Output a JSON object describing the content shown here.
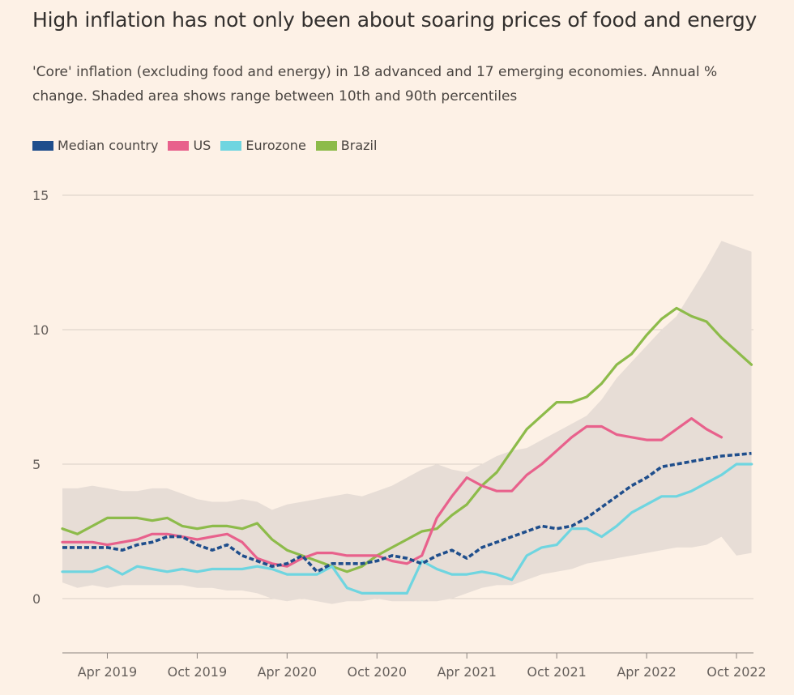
{
  "header": {
    "title": "High inflation has not only been about soaring prices of food and energy",
    "subtitle": "'Core' inflation (excluding food and energy) in 18 advanced and 17 emerging economies. Annual % change. Shaded area shows range between 10th and 90th percentiles"
  },
  "colors": {
    "background": "#fdf1e6",
    "grid": "#d9cfc6",
    "band": "#e7ddd6",
    "median": "#1f4e8c",
    "us": "#e8618c",
    "eurozone": "#6fd5e0",
    "brazil": "#8dbb4a"
  },
  "chart_data": {
    "type": "line",
    "title": "High inflation has not only been about soaring prices of food and energy",
    "ylim": [
      -2,
      15
    ],
    "yticks": [
      0,
      5,
      10,
      15
    ],
    "xlabel": "",
    "ylabel": "",
    "x_range": [
      0,
      45
    ],
    "x_unit": "months since Jan 2019",
    "xticks": [
      {
        "pos": 3,
        "label": "Apr 2019"
      },
      {
        "pos": 9,
        "label": "Oct 2019"
      },
      {
        "pos": 15,
        "label": "Apr 2020"
      },
      {
        "pos": 21,
        "label": "Oct 2020"
      },
      {
        "pos": 27,
        "label": "Apr 2021"
      },
      {
        "pos": 33,
        "label": "Oct 2021"
      },
      {
        "pos": 39,
        "label": "Apr 2022"
      },
      {
        "pos": 45,
        "label": "Oct 2022"
      }
    ],
    "band": {
      "name": "10th-90th percentile range",
      "upper": [
        [
          0,
          4.1
        ],
        [
          1,
          4.1
        ],
        [
          2,
          4.2
        ],
        [
          3,
          4.1
        ],
        [
          4,
          4.0
        ],
        [
          5,
          4.0
        ],
        [
          6,
          4.1
        ],
        [
          7,
          4.1
        ],
        [
          8,
          3.9
        ],
        [
          9,
          3.7
        ],
        [
          10,
          3.6
        ],
        [
          11,
          3.6
        ],
        [
          12,
          3.7
        ],
        [
          13,
          3.6
        ],
        [
          14,
          3.3
        ],
        [
          15,
          3.5
        ],
        [
          16,
          3.6
        ],
        [
          17,
          3.7
        ],
        [
          18,
          3.8
        ],
        [
          19,
          3.9
        ],
        [
          20,
          3.8
        ],
        [
          21,
          4.0
        ],
        [
          22,
          4.2
        ],
        [
          23,
          4.5
        ],
        [
          24,
          4.8
        ],
        [
          25,
          5.0
        ],
        [
          26,
          4.8
        ],
        [
          27,
          4.7
        ],
        [
          28,
          5.0
        ],
        [
          29,
          5.3
        ],
        [
          30,
          5.5
        ],
        [
          31,
          5.6
        ],
        [
          32,
          5.9
        ],
        [
          33,
          6.2
        ],
        [
          34,
          6.5
        ],
        [
          35,
          6.8
        ],
        [
          36,
          7.4
        ],
        [
          37,
          8.2
        ],
        [
          38,
          8.8
        ],
        [
          39,
          9.4
        ],
        [
          40,
          10.0
        ],
        [
          41,
          10.5
        ],
        [
          42,
          11.4
        ],
        [
          43,
          12.3
        ],
        [
          44,
          13.3
        ],
        [
          45,
          13.1
        ],
        [
          46,
          12.9
        ]
      ],
      "lower": [
        [
          0,
          0.6
        ],
        [
          1,
          0.4
        ],
        [
          2,
          0.5
        ],
        [
          3,
          0.4
        ],
        [
          4,
          0.5
        ],
        [
          5,
          0.5
        ],
        [
          6,
          0.5
        ],
        [
          7,
          0.5
        ],
        [
          8,
          0.5
        ],
        [
          9,
          0.4
        ],
        [
          10,
          0.4
        ],
        [
          11,
          0.3
        ],
        [
          12,
          0.3
        ],
        [
          13,
          0.2
        ],
        [
          14,
          0.0
        ],
        [
          15,
          -0.1
        ],
        [
          16,
          0.0
        ],
        [
          17,
          -0.1
        ],
        [
          18,
          -0.2
        ],
        [
          19,
          -0.1
        ],
        [
          20,
          -0.1
        ],
        [
          21,
          0.0
        ],
        [
          22,
          -0.1
        ],
        [
          23,
          -0.1
        ],
        [
          24,
          -0.1
        ],
        [
          25,
          -0.1
        ],
        [
          26,
          0.0
        ],
        [
          27,
          0.2
        ],
        [
          28,
          0.4
        ],
        [
          29,
          0.5
        ],
        [
          30,
          0.5
        ],
        [
          31,
          0.7
        ],
        [
          32,
          0.9
        ],
        [
          33,
          1.0
        ],
        [
          34,
          1.1
        ],
        [
          35,
          1.3
        ],
        [
          36,
          1.4
        ],
        [
          37,
          1.5
        ],
        [
          38,
          1.6
        ],
        [
          39,
          1.7
        ],
        [
          40,
          1.8
        ],
        [
          41,
          1.9
        ],
        [
          42,
          1.9
        ],
        [
          43,
          2.0
        ],
        [
          44,
          2.3
        ],
        [
          45,
          1.6
        ],
        [
          46,
          1.7
        ]
      ]
    },
    "series": [
      {
        "key": "median",
        "name": "Median country",
        "dashed": true,
        "values": [
          [
            0,
            1.9
          ],
          [
            1,
            1.9
          ],
          [
            2,
            1.9
          ],
          [
            3,
            1.9
          ],
          [
            4,
            1.8
          ],
          [
            5,
            2.0
          ],
          [
            6,
            2.1
          ],
          [
            7,
            2.3
          ],
          [
            8,
            2.3
          ],
          [
            9,
            2.0
          ],
          [
            10,
            1.8
          ],
          [
            11,
            2.0
          ],
          [
            12,
            1.6
          ],
          [
            13,
            1.4
          ],
          [
            14,
            1.2
          ],
          [
            15,
            1.3
          ],
          [
            16,
            1.6
          ],
          [
            17,
            1.0
          ],
          [
            18,
            1.3
          ],
          [
            19,
            1.3
          ],
          [
            20,
            1.3
          ],
          [
            21,
            1.4
          ],
          [
            22,
            1.6
          ],
          [
            23,
            1.5
          ],
          [
            24,
            1.3
          ],
          [
            25,
            1.6
          ],
          [
            26,
            1.8
          ],
          [
            27,
            1.5
          ],
          [
            28,
            1.9
          ],
          [
            29,
            2.1
          ],
          [
            30,
            2.3
          ],
          [
            31,
            2.5
          ],
          [
            32,
            2.7
          ],
          [
            33,
            2.6
          ],
          [
            34,
            2.7
          ],
          [
            35,
            3.0
          ],
          [
            36,
            3.4
          ],
          [
            37,
            3.8
          ],
          [
            38,
            4.2
          ],
          [
            39,
            4.5
          ],
          [
            40,
            4.9
          ],
          [
            41,
            5.0
          ],
          [
            42,
            5.1
          ],
          [
            43,
            5.2
          ],
          [
            44,
            5.3
          ],
          [
            45,
            5.35
          ],
          [
            46,
            5.4
          ]
        ]
      },
      {
        "key": "us",
        "name": "US",
        "dashed": false,
        "values": [
          [
            0,
            2.1
          ],
          [
            1,
            2.1
          ],
          [
            2,
            2.1
          ],
          [
            3,
            2.0
          ],
          [
            4,
            2.1
          ],
          [
            5,
            2.2
          ],
          [
            6,
            2.4
          ],
          [
            7,
            2.4
          ],
          [
            8,
            2.3
          ],
          [
            9,
            2.2
          ],
          [
            10,
            2.3
          ],
          [
            11,
            2.4
          ],
          [
            12,
            2.1
          ],
          [
            13,
            1.5
          ],
          [
            14,
            1.3
          ],
          [
            15,
            1.2
          ],
          [
            16,
            1.5
          ],
          [
            17,
            1.7
          ],
          [
            18,
            1.7
          ],
          [
            19,
            1.6
          ],
          [
            20,
            1.6
          ],
          [
            21,
            1.6
          ],
          [
            22,
            1.4
          ],
          [
            23,
            1.3
          ],
          [
            24,
            1.6
          ],
          [
            25,
            3.0
          ],
          [
            26,
            3.8
          ],
          [
            27,
            4.5
          ],
          [
            28,
            4.2
          ],
          [
            29,
            4.0
          ],
          [
            30,
            4.0
          ],
          [
            31,
            4.6
          ],
          [
            32,
            5.0
          ],
          [
            33,
            5.5
          ],
          [
            34,
            6.0
          ],
          [
            35,
            6.4
          ],
          [
            36,
            6.4
          ],
          [
            37,
            6.1
          ],
          [
            38,
            6.0
          ],
          [
            39,
            5.9
          ],
          [
            40,
            5.9
          ],
          [
            41,
            6.3
          ],
          [
            42,
            6.7
          ],
          [
            43,
            6.3
          ],
          [
            44,
            6.0
          ]
        ]
      },
      {
        "key": "eurozone",
        "name": "Eurozone",
        "dashed": false,
        "values": [
          [
            0,
            1.0
          ],
          [
            1,
            1.0
          ],
          [
            2,
            1.0
          ],
          [
            3,
            1.2
          ],
          [
            4,
            0.9
          ],
          [
            5,
            1.2
          ],
          [
            6,
            1.1
          ],
          [
            7,
            1.0
          ],
          [
            8,
            1.1
          ],
          [
            9,
            1.0
          ],
          [
            10,
            1.1
          ],
          [
            11,
            1.1
          ],
          [
            12,
            1.1
          ],
          [
            13,
            1.2
          ],
          [
            14,
            1.1
          ],
          [
            15,
            0.9
          ],
          [
            16,
            0.9
          ],
          [
            17,
            0.9
          ],
          [
            18,
            1.2
          ],
          [
            19,
            0.4
          ],
          [
            20,
            0.2
          ],
          [
            21,
            0.2
          ],
          [
            22,
            0.2
          ],
          [
            23,
            0.2
          ],
          [
            24,
            1.4
          ],
          [
            25,
            1.1
          ],
          [
            26,
            0.9
          ],
          [
            27,
            0.9
          ],
          [
            28,
            1.0
          ],
          [
            29,
            0.9
          ],
          [
            30,
            0.7
          ],
          [
            31,
            1.6
          ],
          [
            32,
            1.9
          ],
          [
            33,
            2.0
          ],
          [
            34,
            2.6
          ],
          [
            35,
            2.6
          ],
          [
            36,
            2.3
          ],
          [
            37,
            2.7
          ],
          [
            38,
            3.2
          ],
          [
            39,
            3.5
          ],
          [
            40,
            3.8
          ],
          [
            41,
            3.8
          ],
          [
            42,
            4.0
          ],
          [
            43,
            4.3
          ],
          [
            44,
            4.6
          ],
          [
            45,
            5.0
          ],
          [
            46,
            5.0
          ]
        ]
      },
      {
        "key": "brazil",
        "name": "Brazil",
        "dashed": false,
        "values": [
          [
            0,
            2.6
          ],
          [
            1,
            2.4
          ],
          [
            2,
            2.7
          ],
          [
            3,
            3.0
          ],
          [
            4,
            3.0
          ],
          [
            5,
            3.0
          ],
          [
            6,
            2.9
          ],
          [
            7,
            3.0
          ],
          [
            8,
            2.7
          ],
          [
            9,
            2.6
          ],
          [
            10,
            2.7
          ],
          [
            11,
            2.7
          ],
          [
            12,
            2.6
          ],
          [
            13,
            2.8
          ],
          [
            14,
            2.2
          ],
          [
            15,
            1.8
          ],
          [
            16,
            1.6
          ],
          [
            17,
            1.4
          ],
          [
            18,
            1.2
          ],
          [
            19,
            1.0
          ],
          [
            20,
            1.2
          ],
          [
            21,
            1.6
          ],
          [
            22,
            1.9
          ],
          [
            23,
            2.2
          ],
          [
            24,
            2.5
          ],
          [
            25,
            2.6
          ],
          [
            26,
            3.1
          ],
          [
            27,
            3.5
          ],
          [
            28,
            4.2
          ],
          [
            29,
            4.7
          ],
          [
            30,
            5.5
          ],
          [
            31,
            6.3
          ],
          [
            32,
            6.8
          ],
          [
            33,
            7.3
          ],
          [
            34,
            7.3
          ],
          [
            35,
            7.5
          ],
          [
            36,
            8.0
          ],
          [
            37,
            8.7
          ],
          [
            38,
            9.1
          ],
          [
            39,
            9.8
          ],
          [
            40,
            10.4
          ],
          [
            41,
            10.8
          ],
          [
            42,
            10.5
          ],
          [
            43,
            10.3
          ],
          [
            44,
            9.7
          ],
          [
            45,
            9.2
          ],
          [
            46,
            8.7
          ]
        ]
      }
    ]
  }
}
